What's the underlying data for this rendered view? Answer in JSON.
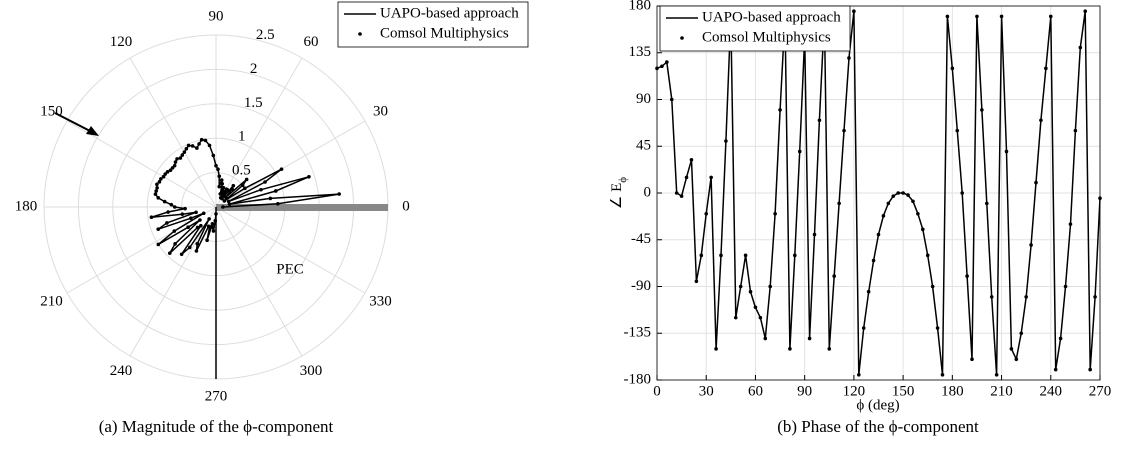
{
  "chart_data": [
    {
      "type": "polar",
      "caption": "(a) Magnitude of the ϕ-component",
      "annotation": "PEC",
      "legend": "northeast",
      "rlim": [
        0,
        2.5
      ],
      "rticks": [
        0.5,
        1,
        1.5,
        2,
        2.5
      ],
      "thetaticks": [
        0,
        30,
        60,
        90,
        120,
        150,
        180,
        210,
        240,
        270,
        300,
        330
      ],
      "theta": [
        0,
        3,
        6,
        9,
        12,
        15,
        18,
        21,
        24,
        27,
        30,
        33,
        36,
        39,
        42,
        45,
        48,
        51,
        54,
        57,
        60,
        63,
        66,
        69,
        72,
        75,
        78,
        81,
        84,
        87,
        90,
        93,
        96,
        99,
        102,
        105,
        108,
        111,
        114,
        117,
        120,
        123,
        126,
        129,
        132,
        135,
        138,
        141,
        144,
        147,
        150,
        153,
        156,
        159,
        162,
        165,
        168,
        171,
        174,
        177,
        180,
        183,
        186,
        189,
        192,
        195,
        198,
        201,
        204,
        207,
        210,
        213,
        216,
        219,
        222,
        225,
        228,
        231,
        234,
        237,
        240,
        243,
        246,
        249,
        252,
        255,
        258,
        261,
        264,
        267,
        270
      ],
      "series": [
        {
          "name": "UAPO-based approach",
          "color": "#000000",
          "style": "line",
          "values": [
            0.1,
            0.9,
            1.8,
            0.8,
            0.2,
            0.9,
            1.42,
            0.7,
            0.2,
            0.8,
            1.1,
            0.5,
            0.15,
            0.5,
            0.6,
            0.2,
            0.35,
            0.4,
            0.15,
            0.3,
            0.3,
            0.15,
            0.25,
            0.3,
            0.2,
            0.35,
            0.4,
            0.3,
            0.45,
            0.55,
            0.6,
            0.75,
            0.9,
            0.98,
            1.0,
            0.95,
            0.9,
            0.95,
            0.98,
            0.95,
            0.92,
            0.9,
            0.88,
            0.9,
            0.88,
            0.85,
            0.85,
            0.85,
            0.87,
            0.88,
            0.88,
            0.9,
            0.9,
            0.92,
            0.9,
            0.9,
            0.9,
            0.85,
            0.75,
            0.65,
            0.6,
            0.45,
            0.7,
            0.95,
            0.5,
            0.3,
            0.75,
            0.9,
            0.4,
            0.2,
            0.7,
            1.0,
            0.5,
            0.3,
            0.8,
            0.95,
            0.4,
            0.35,
            0.85,
            0.7,
            0.2,
            0.6,
            0.7,
            0.3,
            0.3,
            0.5,
            0.25,
            0.3,
            0.35,
            0.2,
            0.1
          ]
        },
        {
          "name": "Comsol Multiphysics",
          "color": "#000000",
          "style": "dots",
          "values": [
            0.1,
            0.9,
            1.8,
            0.8,
            0.2,
            0.9,
            1.42,
            0.7,
            0.2,
            0.8,
            1.1,
            0.5,
            0.15,
            0.5,
            0.6,
            0.2,
            0.35,
            0.4,
            0.15,
            0.3,
            0.3,
            0.15,
            0.25,
            0.3,
            0.2,
            0.35,
            0.4,
            0.3,
            0.45,
            0.55,
            0.6,
            0.75,
            0.9,
            0.98,
            1.0,
            0.95,
            0.9,
            0.95,
            0.98,
            0.95,
            0.92,
            0.9,
            0.88,
            0.9,
            0.88,
            0.85,
            0.85,
            0.85,
            0.87,
            0.88,
            0.88,
            0.9,
            0.9,
            0.92,
            0.9,
            0.9,
            0.9,
            0.85,
            0.75,
            0.65,
            0.6,
            0.45,
            0.7,
            0.95,
            0.5,
            0.3,
            0.75,
            0.9,
            0.4,
            0.2,
            0.7,
            1.0,
            0.5,
            0.3,
            0.8,
            0.95,
            0.4,
            0.35,
            0.85,
            0.7,
            0.2,
            0.6,
            0.7,
            0.3,
            0.3,
            0.5,
            0.25,
            0.3,
            0.35,
            0.2,
            0.1
          ]
        }
      ]
    },
    {
      "type": "line",
      "caption": "(b) Phase of the ϕ-component",
      "xlabel": "ϕ (deg)",
      "ylabel": "∠ E",
      "ylabel_subscript": "ϕ",
      "legend": "northwest",
      "grid": true,
      "xlim": [
        0,
        270
      ],
      "xticks": [
        0,
        30,
        60,
        90,
        120,
        150,
        180,
        210,
        240,
        270
      ],
      "ylim": [
        -180,
        180
      ],
      "yticks": [
        -180,
        -135,
        -90,
        -45,
        0,
        45,
        90,
        135,
        180
      ],
      "x": [
        0,
        3,
        6,
        9,
        12,
        15,
        18,
        21,
        24,
        27,
        30,
        33,
        36,
        39,
        42,
        45,
        48,
        51,
        54,
        57,
        60,
        63,
        66,
        69,
        72,
        75,
        78,
        81,
        84,
        87,
        90,
        93,
        96,
        99,
        102,
        105,
        108,
        111,
        114,
        117,
        120,
        123,
        126,
        129,
        132,
        135,
        138,
        141,
        144,
        147,
        150,
        153,
        156,
        159,
        162,
        165,
        168,
        171,
        174,
        177,
        180,
        183,
        186,
        189,
        192,
        195,
        198,
        201,
        204,
        207,
        210,
        213,
        216,
        219,
        222,
        225,
        228,
        231,
        234,
        237,
        240,
        243,
        246,
        249,
        252,
        255,
        258,
        261,
        264,
        267,
        270
      ],
      "series": [
        {
          "name": "UAPO-based approach",
          "color": "#000000",
          "style": "line",
          "values": [
            120,
            122,
            126,
            90,
            0,
            -3,
            15,
            32,
            -85,
            -60,
            -20,
            15,
            -150,
            -60,
            50,
            170,
            -120,
            -90,
            -60,
            -95,
            -110,
            -120,
            -140,
            -90,
            -20,
            80,
            170,
            -150,
            -60,
            40,
            150,
            -140,
            -40,
            70,
            170,
            -150,
            -80,
            -10,
            60,
            130,
            175,
            -175,
            -130,
            -95,
            -65,
            -40,
            -22,
            -10,
            -3,
            0,
            0,
            -2,
            -8,
            -20,
            -35,
            -60,
            -90,
            -130,
            -175,
            170,
            120,
            60,
            0,
            -80,
            -160,
            170,
            80,
            -10,
            -100,
            -175,
            170,
            40,
            -150,
            -160,
            -135,
            -100,
            -50,
            10,
            70,
            120,
            170,
            -170,
            -140,
            -90,
            -30,
            60,
            140,
            175,
            -170,
            -100,
            -5
          ]
        },
        {
          "name": "Comsol Multiphysics",
          "color": "#000000",
          "style": "dots",
          "values": [
            120,
            122,
            126,
            90,
            0,
            -3,
            15,
            32,
            -85,
            -60,
            -20,
            15,
            -150,
            -60,
            50,
            170,
            -120,
            -90,
            -60,
            -95,
            -110,
            -120,
            -140,
            -90,
            -20,
            80,
            170,
            -150,
            -60,
            40,
            150,
            -140,
            -40,
            70,
            170,
            -150,
            -80,
            -10,
            60,
            130,
            175,
            -175,
            -130,
            -95,
            -65,
            -40,
            -22,
            -10,
            -3,
            0,
            0,
            -2,
            -8,
            -20,
            -35,
            -60,
            -90,
            -130,
            -175,
            170,
            120,
            60,
            0,
            -80,
            -160,
            170,
            80,
            -10,
            -100,
            -175,
            170,
            40,
            -150,
            -160,
            -135,
            -100,
            -50,
            10,
            70,
            120,
            170,
            -170,
            -140,
            -90,
            -30,
            60,
            140,
            175,
            -170,
            -100,
            -5
          ]
        }
      ]
    }
  ]
}
